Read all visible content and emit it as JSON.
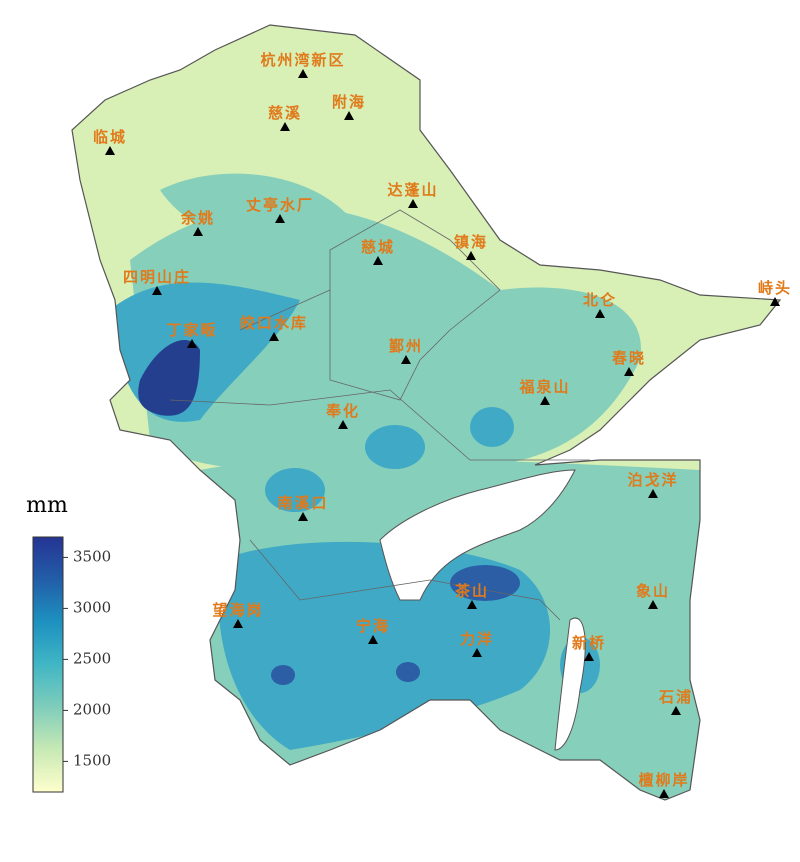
{
  "colorbar": {
    "label": "mm",
    "lim": [
      1200,
      3700
    ],
    "ticks": [
      1500,
      2000,
      2500,
      3000,
      3500
    ],
    "colors": [
      "#ffffcc",
      "#c7e9b4",
      "#7fcdbb",
      "#41b6c4",
      "#1d91c0",
      "#225ea8",
      "#253494"
    ]
  },
  "stations": [
    "杭州湾新区",
    "慈溪",
    "附海",
    "临城",
    "达蓬山",
    "余姚",
    "丈亭水厂",
    "慈城",
    "镇海",
    "四明山庄",
    "北仑",
    "峙头",
    "丁家畈",
    "皎口水库",
    "鄞州",
    "春晓",
    "福泉山",
    "奉化",
    "南溪口",
    "泊戈洋",
    "望海岗",
    "宁海",
    "茶山",
    "象山",
    "力洋",
    "新桥",
    "石浦",
    "檀柳岸"
  ]
}
